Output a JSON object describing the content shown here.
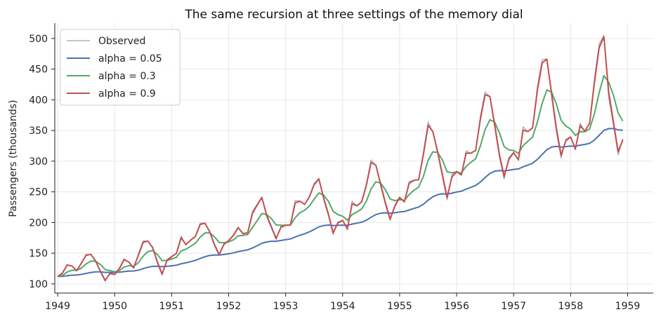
{
  "chart_data": {
    "type": "line",
    "title": "The same recursion at three settings of the memory dial",
    "xlabel": "",
    "ylabel": "Passengers (thousands)",
    "xlim": [
      1948.95,
      1959.45
    ],
    "ylim": [
      85,
      525
    ],
    "xticks": [
      1949,
      1950,
      1951,
      1952,
      1953,
      1954,
      1955,
      1956,
      1957,
      1958,
      1959
    ],
    "yticks": [
      100,
      150,
      200,
      250,
      300,
      350,
      400,
      450,
      500
    ],
    "grid": true,
    "legend_position": "top-left",
    "colors": {
      "Observed": "#a3a3a3",
      "alpha = 0.05": "#4c72b0",
      "alpha = 0.3": "#55a868",
      "alpha = 0.9": "#c44e52"
    },
    "series": [
      {
        "name": "Observed",
        "start": 1949.0,
        "step": 0.0833333,
        "values": [
          112,
          118,
          132,
          129,
          121,
          135,
          148,
          148,
          136,
          119,
          104,
          118,
          115,
          126,
          141,
          135,
          125,
          149,
          170,
          170,
          158,
          133,
          114,
          140,
          145,
          150,
          178,
          163,
          172,
          178,
          199,
          199,
          184,
          162,
          146,
          166,
          171,
          180,
          193,
          181,
          183,
          218,
          230,
          242,
          209,
          191,
          172,
          194,
          196,
          196,
          236,
          235,
          229,
          243,
          264,
          272,
          237,
          211,
          180,
          201,
          204,
          188,
          235,
          227,
          234,
          264,
          302,
          293,
          259,
          229,
          203,
          229,
          242,
          233,
          267,
          269,
          270,
          315,
          364,
          347,
          312,
          274,
          237,
          278,
          284,
          277,
          317,
          313,
          318,
          374,
          413,
          405,
          355,
          306,
          271,
          306,
          315,
          301,
          356,
          348,
          355,
          422,
          465,
          467,
          404,
          347,
          305,
          336,
          340,
          318,
          362,
          348,
          363,
          435,
          491,
          505,
          404,
          359,
          310,
          337
        ]
      },
      {
        "name": "alpha = 0.05",
        "start": 1949.0,
        "step": 0.0833333,
        "values": [
          112.0,
          112.3,
          113.3,
          114.1,
          114.4,
          115.4,
          117.0,
          118.6,
          119.5,
          119.5,
          118.7,
          118.7,
          118.5,
          118.9,
          120.0,
          120.8,
          121.0,
          122.4,
          124.8,
          127.1,
          128.6,
          128.8,
          128.0,
          128.6,
          129.4,
          130.4,
          132.8,
          134.3,
          136.2,
          138.3,
          141.3,
          144.2,
          146.2,
          147.0,
          146.9,
          147.9,
          149.0,
          150.5,
          152.6,
          154.0,
          155.4,
          158.5,
          162.1,
          166.1,
          168.3,
          169.4,
          169.5,
          170.7,
          172.0,
          173.2,
          176.3,
          179.2,
          181.7,
          184.8,
          188.7,
          192.9,
          195.1,
          195.9,
          195.1,
          195.4,
          195.8,
          195.4,
          197.4,
          198.9,
          200.6,
          203.8,
          208.7,
          212.9,
          215.2,
          215.9,
          215.2,
          215.9,
          217.2,
          217.9,
          220.4,
          222.9,
          225.2,
          229.7,
          236.4,
          241.9,
          245.4,
          246.8,
          246.3,
          247.9,
          249.7,
          251.1,
          254.4,
          257.3,
          260.3,
          266.0,
          273.3,
          279.9,
          283.6,
          284.7,
          284.0,
          285.1,
          286.6,
          287.3,
          290.8,
          293.6,
          296.7,
          302.9,
          310.9,
          318.7,
          322.9,
          324.1,
          323.1,
          323.8,
          324.6,
          324.3,
          326.2,
          327.3,
          329.1,
          334.4,
          342.2,
          350.3,
          353.0,
          353.3,
          351.1,
          350.4
        ]
      },
      {
        "name": "alpha = 0.3",
        "start": 1949.0,
        "step": 0.0833333,
        "values": [
          112.0,
          113.8,
          119.3,
          122.2,
          121.8,
          125.8,
          132.5,
          137.1,
          136.8,
          131.5,
          123.3,
          121.7,
          119.7,
          121.6,
          127.4,
          129.7,
          128.3,
          134.5,
          145.2,
          152.6,
          154.2,
          147.9,
          137.7,
          138.4,
          140.4,
          143.3,
          153.7,
          156.5,
          161.2,
          166.2,
          176.0,
          182.9,
          183.2,
          176.9,
          167.6,
          167.1,
          168.3,
          171.8,
          178.2,
          179.0,
          180.2,
          191.5,
          203.1,
          214.7,
          213.0,
          206.4,
          196.1,
          195.5,
          195.6,
          195.7,
          207.8,
          216.0,
          219.9,
          226.8,
          238.0,
          248.2,
          244.8,
          234.6,
          218.2,
          213.0,
          210.3,
          203.6,
          213.0,
          217.2,
          222.2,
          234.8,
          255.0,
          266.4,
          264.2,
          253.6,
          238.4,
          235.6,
          237.5,
          236.1,
          245.4,
          252.5,
          257.7,
          274.9,
          301.6,
          315.2,
          314.3,
          302.2,
          282.6,
          281.2,
          282.1,
          280.6,
          291.5,
          298.0,
          304.0,
          325.0,
          351.4,
          367.5,
          363.8,
          346.4,
          323.8,
          318.5,
          317.4,
          312.5,
          325.6,
          332.4,
          339.2,
          364.0,
          394.3,
          416.1,
          412.5,
          393.0,
          366.6,
          357.4,
          352.2,
          341.9,
          348.0,
          348.0,
          352.5,
          377.2,
          411.4,
          439.5,
          428.9,
          407.9,
          378.5,
          365.5
        ]
      },
      {
        "name": "alpha = 0.9",
        "start": 1949.0,
        "step": 0.0833333,
        "values": [
          112.0,
          117.4,
          130.5,
          129.2,
          121.8,
          133.7,
          146.6,
          148.0,
          137.2,
          120.8,
          105.7,
          116.8,
          115.2,
          124.9,
          139.4,
          135.4,
          126.0,
          146.7,
          167.7,
          169.8,
          159.2,
          135.6,
          116.2,
          137.6,
          144.3,
          149.4,
          175.1,
          164.2,
          171.2,
          177.3,
          196.8,
          198.8,
          185.5,
          164.4,
          147.8,
          164.2,
          170.3,
          179.0,
          191.6,
          182.1,
          182.9,
          214.5,
          228.4,
          240.6,
          212.2,
          193.1,
          174.1,
          192.0,
          195.6,
          195.9,
          232.0,
          234.7,
          229.6,
          241.7,
          261.8,
          271.0,
          240.4,
          213.9,
          183.4,
          199.2,
          203.5,
          189.6,
          230.5,
          227.4,
          233.3,
          261.0,
          297.9,
          293.5,
          262.5,
          232.4,
          205.9,
          226.7,
          240.5,
          233.8,
          263.7,
          268.5,
          269.8,
          310.5,
          358.6,
          348.2,
          315.6,
          278.2,
          241.1,
          274.3,
          283.0,
          277.6,
          313.1,
          313.0,
          317.5,
          368.4,
          408.5,
          405.3,
          360.0,
          311.4,
          275.0,
          302.9,
          313.8,
          302.3,
          350.6,
          348.3,
          354.3,
          415.2,
          460.0,
          466.3,
          410.2,
          353.3,
          309.8,
          333.4,
          339.3,
          320.1,
          357.8,
          349.0,
          361.6,
          427.7,
          484.7,
          503.0,
          413.9,
          364.5,
          315.4,
          334.8
        ]
      }
    ]
  }
}
